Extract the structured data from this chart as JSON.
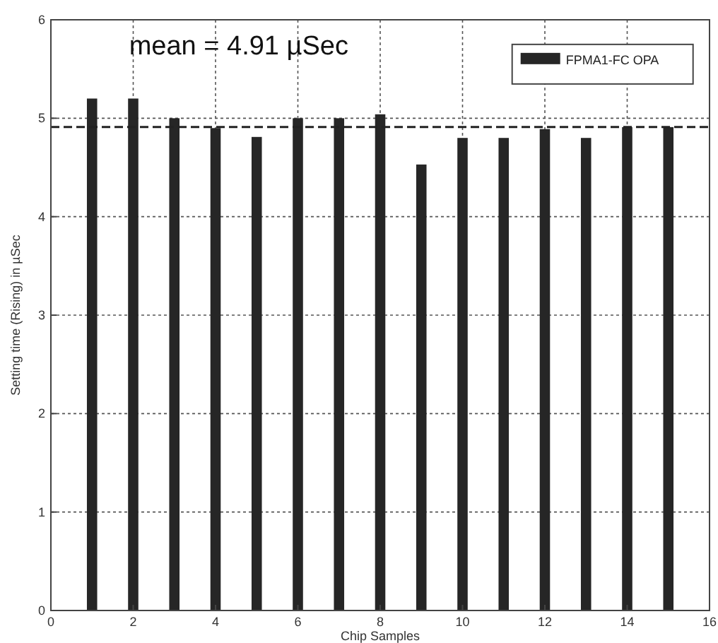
{
  "chart_data": {
    "type": "bar",
    "xlabel": "Chip Samples",
    "ylabel": "Setting time (Rising) in µSec",
    "x": [
      1,
      2,
      3,
      4,
      5,
      6,
      7,
      8,
      9,
      10,
      11,
      12,
      13,
      14,
      15
    ],
    "series": [
      {
        "name": "FPMA1-FC OPA",
        "color": "#262626",
        "values": [
          5.2,
          5.2,
          5.0,
          4.9,
          4.81,
          5.0,
          5.0,
          5.04,
          4.53,
          4.8,
          4.8,
          4.89,
          4.8,
          4.91,
          4.91
        ]
      }
    ],
    "xlim": [
      0,
      16
    ],
    "xticks": [
      0,
      2,
      4,
      6,
      8,
      10,
      12,
      14,
      16
    ],
    "ylim": [
      0,
      6
    ],
    "yticks": [
      0,
      1,
      2,
      3,
      4,
      5,
      6
    ],
    "grid": true,
    "legend": "top right",
    "ref_lines": [
      {
        "axis": "y",
        "value": 4.91,
        "label": "mean = 4.91 µSec",
        "line_style": "dashed"
      }
    ]
  }
}
